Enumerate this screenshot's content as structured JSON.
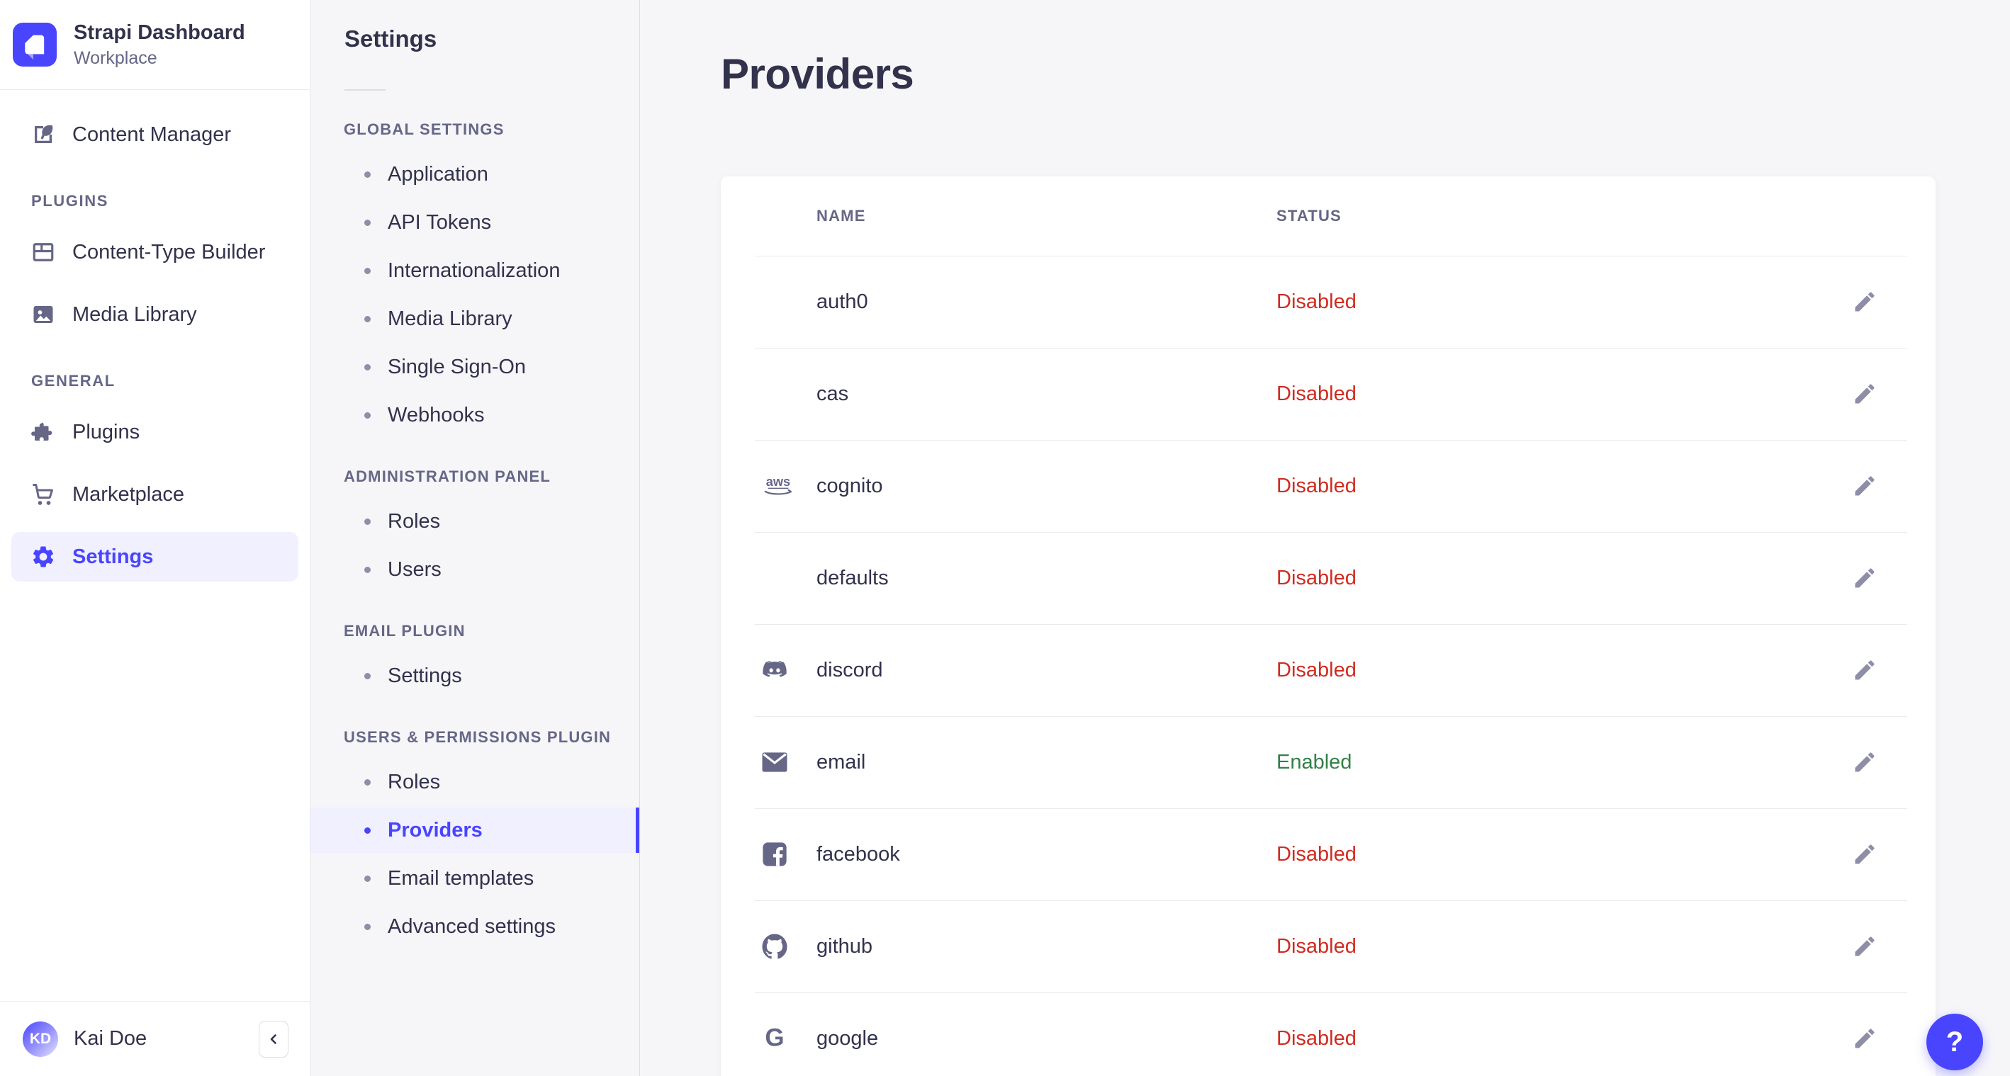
{
  "colors": {
    "accent": "#4945ff",
    "accent_bg": "#f0f0ff",
    "danger": "#d02b20",
    "success": "#328048",
    "text": "#32324d",
    "muted": "#666687",
    "border": "#eaeaef",
    "border_strong": "#dcdce4",
    "bg": "#f6f6f9"
  },
  "brand": {
    "title": "Strapi Dashboard",
    "subtitle": "Workplace",
    "logo_icon": "strapi-logo"
  },
  "sidebar": {
    "sections": [
      {
        "label": null,
        "items": [
          {
            "label": "Content Manager",
            "icon": "pen",
            "active": false
          }
        ]
      },
      {
        "label": "PLUGINS",
        "items": [
          {
            "label": "Content-Type Builder",
            "icon": "layout",
            "active": false
          },
          {
            "label": "Media Library",
            "icon": "image",
            "active": false
          }
        ]
      },
      {
        "label": "GENERAL",
        "items": [
          {
            "label": "Plugins",
            "icon": "puzzle",
            "active": false
          },
          {
            "label": "Marketplace",
            "icon": "cart",
            "active": false
          },
          {
            "label": "Settings",
            "icon": "gear",
            "active": true
          }
        ]
      }
    ],
    "footer": {
      "initials": "KD",
      "name": "Kai Doe",
      "collapse_icon": "chevron-left"
    }
  },
  "subnav": {
    "title": "Settings",
    "sections": [
      {
        "label": "GLOBAL SETTINGS",
        "items": [
          {
            "label": "Application",
            "active": false
          },
          {
            "label": "API Tokens",
            "active": false
          },
          {
            "label": "Internationalization",
            "active": false
          },
          {
            "label": "Media Library",
            "active": false
          },
          {
            "label": "Single Sign-On",
            "active": false
          },
          {
            "label": "Webhooks",
            "active": false
          }
        ]
      },
      {
        "label": "ADMINISTRATION PANEL",
        "items": [
          {
            "label": "Roles",
            "active": false
          },
          {
            "label": "Users",
            "active": false
          }
        ]
      },
      {
        "label": "EMAIL PLUGIN",
        "items": [
          {
            "label": "Settings",
            "active": false
          }
        ]
      },
      {
        "label": "USERS & PERMISSIONS PLUGIN",
        "items": [
          {
            "label": "Roles",
            "active": false
          },
          {
            "label": "Providers",
            "active": true
          },
          {
            "label": "Email templates",
            "active": false
          },
          {
            "label": "Advanced settings",
            "active": false
          }
        ]
      }
    ]
  },
  "main": {
    "title": "Providers",
    "table": {
      "columns": [
        "NAME",
        "STATUS"
      ],
      "rows": [
        {
          "name": "auth0",
          "icon": null,
          "status": "Disabled"
        },
        {
          "name": "cas",
          "icon": null,
          "status": "Disabled"
        },
        {
          "name": "cognito",
          "icon": "aws",
          "status": "Disabled"
        },
        {
          "name": "defaults",
          "icon": null,
          "status": "Disabled"
        },
        {
          "name": "discord",
          "icon": "discord",
          "status": "Disabled"
        },
        {
          "name": "email",
          "icon": "envelope",
          "status": "Enabled"
        },
        {
          "name": "facebook",
          "icon": "facebook",
          "status": "Disabled"
        },
        {
          "name": "github",
          "icon": "github",
          "status": "Disabled"
        },
        {
          "name": "google",
          "icon": "google",
          "status": "Disabled"
        }
      ],
      "edit_icon": "pencil"
    }
  },
  "help": {
    "label": "?"
  }
}
